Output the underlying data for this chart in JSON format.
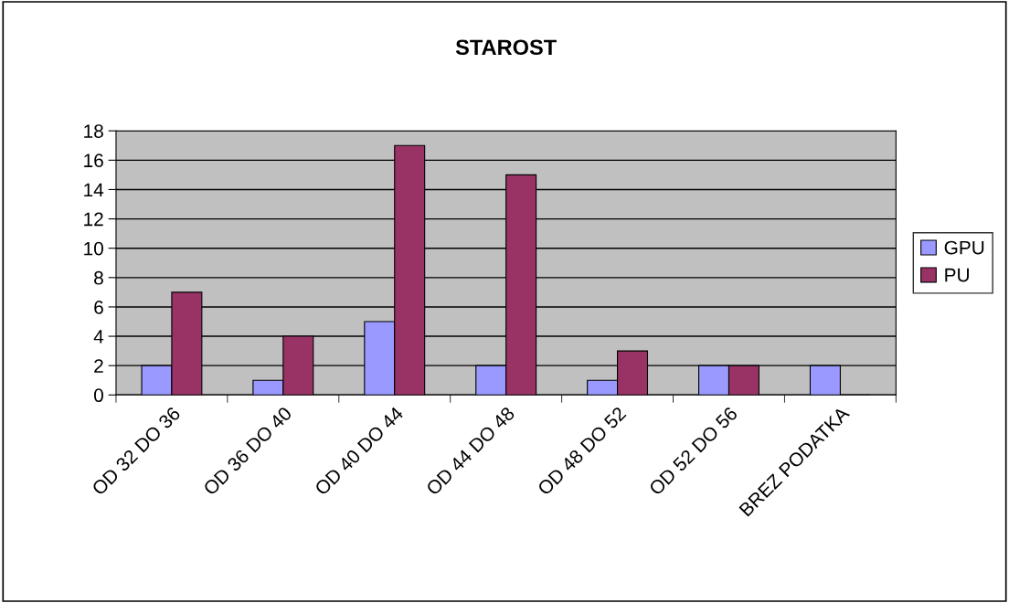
{
  "chart_data": {
    "type": "bar",
    "title": "STAROST",
    "categories": [
      "OD 32 DO 36",
      "OD 36 DO 40",
      "OD 40 DO 44",
      "OD 44 DO 48",
      "OD 48 DO 52",
      "OD 52 DO 56",
      "BREZ PODATKA"
    ],
    "series": [
      {
        "name": "GPU",
        "color": "#9999ff",
        "values": [
          2,
          1,
          5,
          2,
          1,
          2,
          2
        ]
      },
      {
        "name": "PU",
        "color": "#993366",
        "values": [
          7,
          4,
          17,
          15,
          3,
          2,
          0
        ]
      }
    ],
    "ylim": [
      0,
      18
    ],
    "yticks": [
      0,
      2,
      4,
      6,
      8,
      10,
      12,
      14,
      16,
      18
    ],
    "grid": "y",
    "legend": "right"
  }
}
